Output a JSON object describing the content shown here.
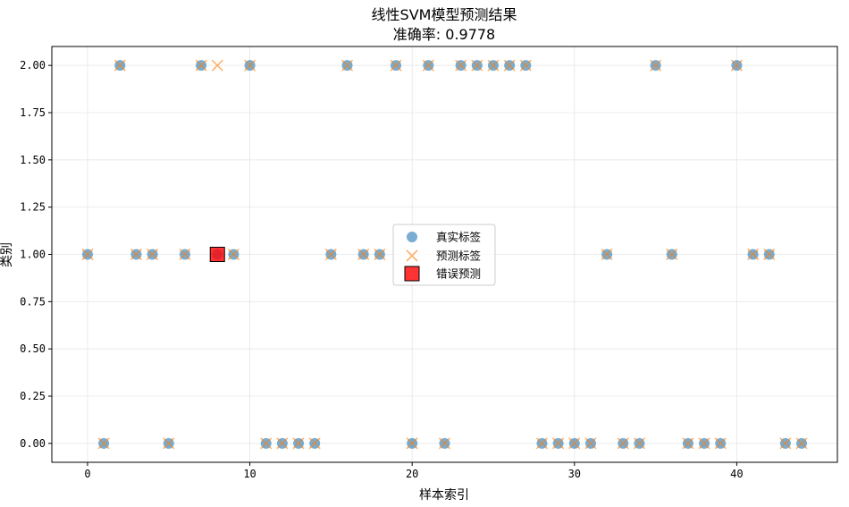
{
  "chart_data": {
    "type": "scatter",
    "title": "线性SVM模型预测结果",
    "subtitle": "准确率: 0.9778",
    "xlabel": "样本索引",
    "ylabel": "类别",
    "xlim": [
      -2.2,
      46.2
    ],
    "ylim": [
      -0.1,
      2.1
    ],
    "xticks": [
      0,
      10,
      20,
      30,
      40
    ],
    "yticks": [
      0.0,
      0.25,
      0.5,
      0.75,
      1.0,
      1.25,
      1.5,
      1.75,
      2.0
    ],
    "ytick_labels": [
      "0.00",
      "0.25",
      "0.50",
      "0.75",
      "1.00",
      "1.25",
      "1.50",
      "1.75",
      "2.00"
    ],
    "grid": true,
    "legend_position": "center",
    "x": [
      0,
      1,
      2,
      3,
      4,
      5,
      6,
      7,
      8,
      9,
      10,
      11,
      12,
      13,
      14,
      15,
      16,
      17,
      18,
      19,
      20,
      21,
      22,
      23,
      24,
      25,
      26,
      27,
      28,
      29,
      30,
      31,
      32,
      33,
      34,
      35,
      36,
      37,
      38,
      39,
      40,
      41,
      42,
      43,
      44
    ],
    "series": [
      {
        "name": "真实标签",
        "marker": "circle",
        "color": "#1f77b4",
        "values": [
          1,
          0,
          2,
          1,
          1,
          0,
          1,
          2,
          1,
          1,
          2,
          0,
          0,
          0,
          0,
          1,
          2,
          1,
          1,
          2,
          0,
          2,
          0,
          2,
          2,
          2,
          2,
          2,
          0,
          0,
          0,
          0,
          1,
          0,
          0,
          2,
          1,
          0,
          0,
          0,
          2,
          1,
          1,
          0,
          0
        ]
      },
      {
        "name": "预测标签",
        "marker": "x",
        "color": "#ff7f0e",
        "values": [
          1,
          0,
          2,
          1,
          1,
          0,
          1,
          2,
          2,
          1,
          2,
          0,
          0,
          0,
          0,
          1,
          2,
          1,
          1,
          2,
          0,
          2,
          0,
          2,
          2,
          2,
          2,
          2,
          0,
          0,
          0,
          0,
          1,
          0,
          0,
          2,
          1,
          0,
          0,
          0,
          2,
          1,
          1,
          0,
          0
        ]
      },
      {
        "name": "错误预测",
        "marker": "square",
        "color": "#ff0000",
        "points": [
          {
            "x": 8,
            "y": 1
          }
        ]
      }
    ]
  }
}
